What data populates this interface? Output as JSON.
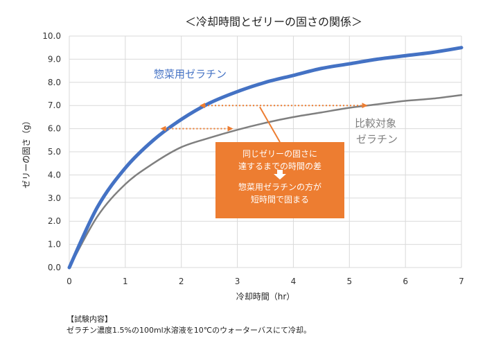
{
  "chart_data": {
    "type": "line",
    "title": "＜冷却時間とゼリーの固さの関係＞",
    "xlabel": "冷却時間（hr）",
    "ylabel": "ゼリーの固さ（g）",
    "xlim": [
      0,
      7
    ],
    "ylim": [
      0,
      10
    ],
    "x_ticks": [
      "0",
      "1",
      "2",
      "3",
      "4",
      "5",
      "6",
      "7"
    ],
    "y_ticks": [
      "0.0",
      "1.0",
      "2.0",
      "3.0",
      "4.0",
      "5.0",
      "6.0",
      "7.0",
      "8.0",
      "9.0",
      "10.0"
    ],
    "grid": true,
    "series": [
      {
        "name": "惣菜用ゼラチン",
        "color": "#4472c4",
        "x": [
          0,
          0.5,
          1,
          1.5,
          2,
          2.5,
          3,
          3.5,
          4,
          4.5,
          5,
          5.5,
          6,
          6.5,
          7
        ],
        "y": [
          0.0,
          2.6,
          4.3,
          5.5,
          6.4,
          7.1,
          7.6,
          8.0,
          8.3,
          8.6,
          8.8,
          9.0,
          9.15,
          9.3,
          9.5
        ]
      },
      {
        "name": "比較対象ゼラチン",
        "color": "#7f7f7f",
        "x": [
          0,
          0.5,
          1,
          1.5,
          2,
          2.5,
          3,
          3.5,
          4,
          4.5,
          5,
          5.5,
          6,
          6.5,
          7
        ],
        "y": [
          0.0,
          2.2,
          3.6,
          4.5,
          5.2,
          5.6,
          5.95,
          6.25,
          6.5,
          6.7,
          6.9,
          7.05,
          7.2,
          7.3,
          7.45
        ]
      }
    ],
    "series_labels": [
      "惣菜用ゼラチン",
      "比較対象",
      "ゼラチン"
    ],
    "annotations": {
      "arrows": [
        {
          "y": 6.0,
          "x_from": 1.65,
          "x_to": 2.9
        },
        {
          "y": 7.0,
          "x_from": 2.35,
          "x_to": 5.3
        }
      ],
      "callout_lines": [
        "同じゼリーの固さに",
        "達するまでの時間の差",
        "惣菜用ゼラチンの方が",
        "短時間で固まる"
      ],
      "color": "#ed7d31"
    }
  },
  "notes": [
    "【試験内容】",
    "ゼラチン濃度1.5%の100ml水溶液を10℃のウォーターバスにて冷却。"
  ]
}
